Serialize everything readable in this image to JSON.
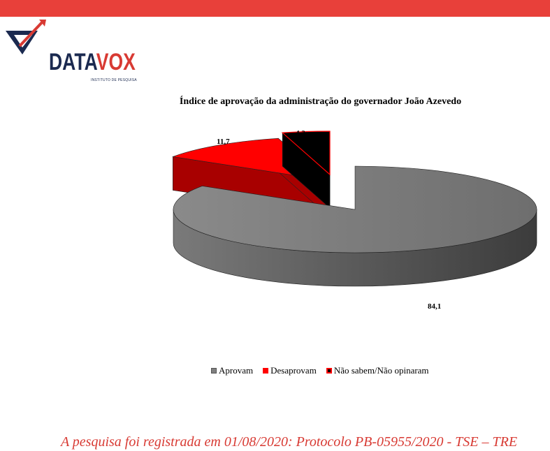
{
  "header": {
    "bar_color": "#e8403a"
  },
  "logo": {
    "word_main": "DATA",
    "word_accent": "VOX",
    "subtitle": "INSTITUTO DE PESQUISA",
    "color_main": "#1b2a50",
    "color_accent": "#d83a33"
  },
  "chart_data": {
    "type": "pie",
    "title": "Índice de aprovação da administração do governador João Azevedo",
    "series": [
      {
        "name": "Aprovam",
        "value": 84.1,
        "label": "84,1",
        "color": "#808080"
      },
      {
        "name": "Desaprovam",
        "value": 11.7,
        "label": "11,7",
        "color": "#ff0000"
      },
      {
        "name": "Não sabem/Não opinaram",
        "value": 4.2,
        "label": "4,2",
        "color": "#000000"
      }
    ],
    "legend_position": "bottom",
    "style": "3d-exploded"
  },
  "footer": {
    "text": "A pesquisa foi registrada em 01/08/2020: Protocolo PB-05955/2020 - TSE – TRE"
  }
}
